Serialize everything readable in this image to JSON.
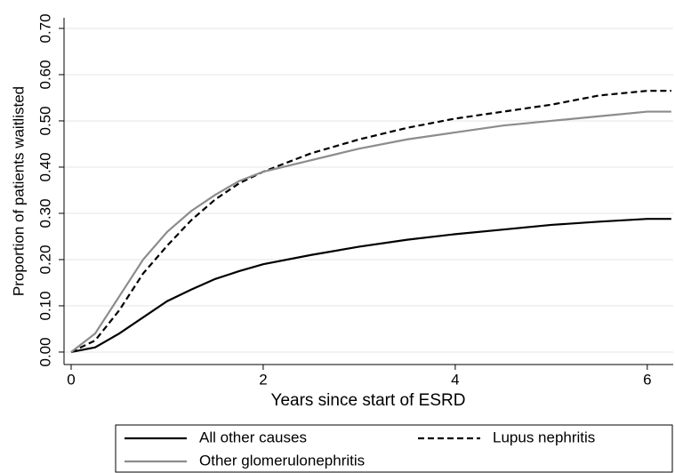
{
  "chart_data": {
    "type": "line",
    "xlabel": "Years since start of ESRD",
    "ylabel": "Proportion of patients waitlisted",
    "x": [
      0,
      0.25,
      0.5,
      0.75,
      1,
      1.25,
      1.5,
      1.75,
      2,
      2.5,
      3,
      3.5,
      4,
      4.5,
      5,
      5.5,
      6,
      6.25
    ],
    "series": [
      {
        "name": "All other causes",
        "color": "#000000",
        "dash": false,
        "values": [
          0,
          0.01,
          0.04,
          0.075,
          0.11,
          0.135,
          0.158,
          0.175,
          0.19,
          0.21,
          0.228,
          0.243,
          0.255,
          0.265,
          0.275,
          0.282,
          0.288,
          0.288
        ]
      },
      {
        "name": "Lupus nephritis",
        "color": "#000000",
        "dash": true,
        "values": [
          0,
          0.025,
          0.09,
          0.17,
          0.23,
          0.285,
          0.33,
          0.365,
          0.39,
          0.43,
          0.46,
          0.485,
          0.505,
          0.52,
          0.535,
          0.555,
          0.565,
          0.565
        ]
      },
      {
        "name": "Other glomerulonephritis",
        "color": "#8c8c8c",
        "dash": false,
        "values": [
          0,
          0.04,
          0.12,
          0.2,
          0.26,
          0.305,
          0.34,
          0.37,
          0.39,
          0.415,
          0.44,
          0.46,
          0.475,
          0.49,
          0.5,
          0.51,
          0.52,
          0.52
        ]
      }
    ],
    "xlim": [
      -0.074,
      6.27
    ],
    "ylim": [
      -0.027,
      0.723
    ],
    "xticks": [
      0,
      2,
      4,
      6
    ],
    "yticks": [
      {
        "value": 0,
        "label": "0.00"
      },
      {
        "value": 0.1,
        "label": "0.10"
      },
      {
        "value": 0.2,
        "label": "0.20"
      },
      {
        "value": 0.3,
        "label": "0.30"
      },
      {
        "value": 0.4,
        "label": "0.40"
      },
      {
        "value": 0.5,
        "label": "0.50"
      },
      {
        "value": 0.6,
        "label": "0.60"
      },
      {
        "value": 0.7,
        "label": "0.70"
      }
    ],
    "grid": true,
    "legend": "bottom"
  }
}
